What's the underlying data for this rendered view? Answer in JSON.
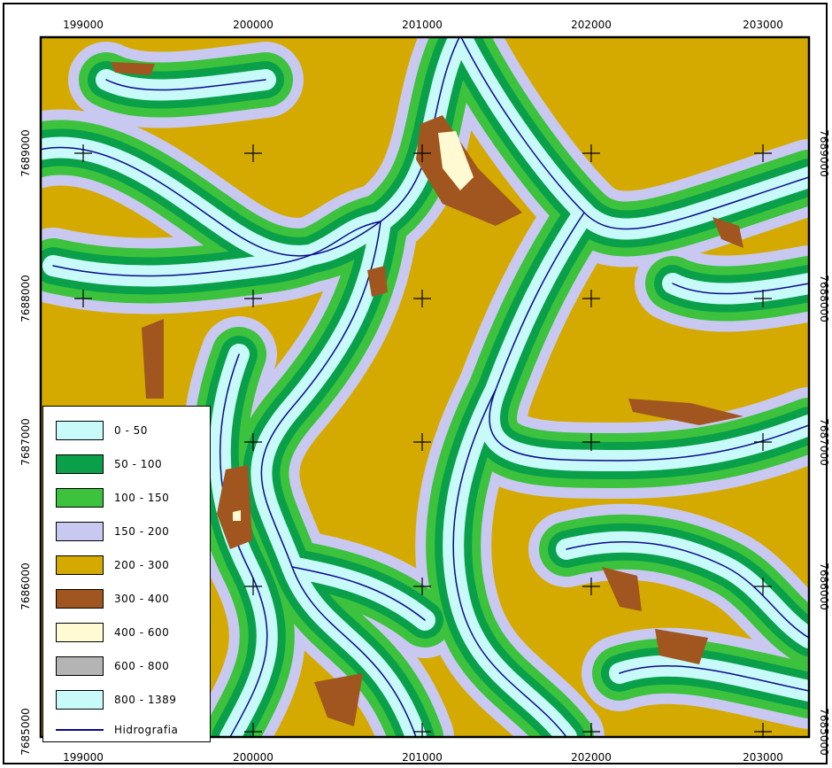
{
  "map": {
    "x_ticks": [
      "199000",
      "200000",
      "201000",
      "202000",
      "203000"
    ],
    "y_ticks": [
      "7689000",
      "7688000",
      "7687000",
      "7686000",
      "7685000"
    ]
  },
  "legend": {
    "items": [
      {
        "label": "0 - 50",
        "color": "#c8fafa"
      },
      {
        "label": "50 - 100",
        "color": "#0aa04a"
      },
      {
        "label": "100 - 150",
        "color": "#3cc23c"
      },
      {
        "label": "150 - 200",
        "color": "#c8c8f0"
      },
      {
        "label": "200 - 300",
        "color": "#d4aa00"
      },
      {
        "label": "300 - 400",
        "color": "#a0561e"
      },
      {
        "label": "400 - 600",
        "color": "#fffad2"
      },
      {
        "label": "600 - 800",
        "color": "#b4b4b4"
      },
      {
        "label": "800 - 1389",
        "color": "#c8fafa"
      }
    ],
    "line_item": {
      "label": "Hidrografia",
      "color": "#0a0a8c"
    }
  }
}
